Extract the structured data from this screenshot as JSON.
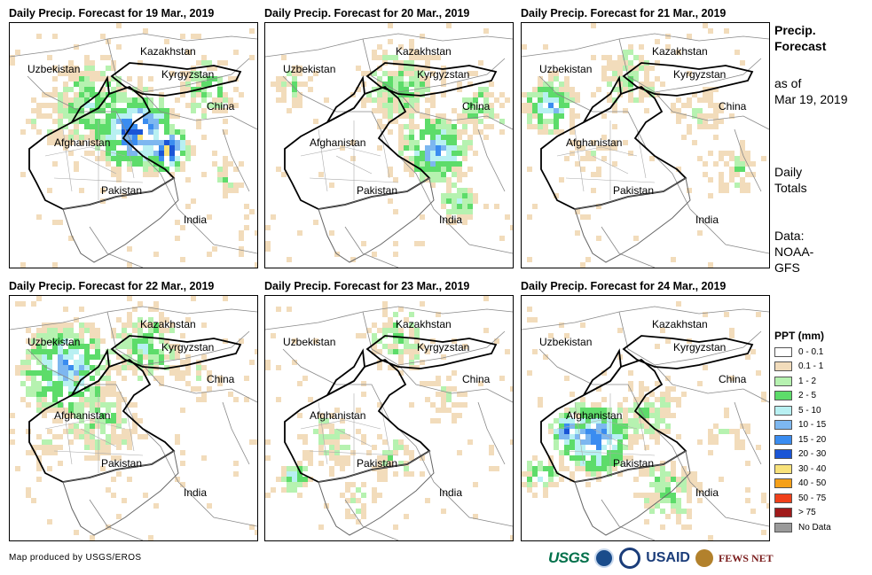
{
  "panels": [
    {
      "title": "Daily Precip. Forecast for 19 Mar., 2019",
      "pattern": "northeast-heavy"
    },
    {
      "title": "Daily Precip. Forecast for 20 Mar., 2019",
      "pattern": "east"
    },
    {
      "title": "Daily Precip. Forecast for 21 Mar., 2019",
      "pattern": "light-west"
    },
    {
      "title": "Daily Precip. Forecast for 22 Mar., 2019",
      "pattern": "northwest"
    },
    {
      "title": "Daily Precip. Forecast for 23 Mar., 2019",
      "pattern": "north-light"
    },
    {
      "title": "Daily Precip. Forecast for 24 Mar., 2019",
      "pattern": "central-heavy"
    }
  ],
  "map_labels": {
    "kazakhstan": "Kazakhstan",
    "uzbekistan": "Uzbekistan",
    "kyrgyzstan": "Kyrgyzstan",
    "china": "China",
    "afghanistan": "Afghanistan",
    "pakistan": "Pakistan",
    "india": "India"
  },
  "side": {
    "title_line1": "Precip.",
    "title_line2": "Forecast",
    "asof_line1": "as of",
    "asof_line2": "Mar 19, 2019",
    "daily_line1": "Daily",
    "daily_line2": "Totals",
    "data_line1": "Data:",
    "data_line2": "NOAA-",
    "data_line3": "GFS"
  },
  "legend": {
    "title": "PPT (mm)",
    "items": [
      {
        "label": "0 - 0.1",
        "color": "#ffffff"
      },
      {
        "label": "0.1 - 1",
        "color": "#f2dcbb"
      },
      {
        "label": "1 - 2",
        "color": "#b6f2b0"
      },
      {
        "label": "2 - 5",
        "color": "#5ddc6a"
      },
      {
        "label": "5 - 10",
        "color": "#b8f0f2"
      },
      {
        "label": "10 - 15",
        "color": "#7db7f0"
      },
      {
        "label": "15 - 20",
        "color": "#3a8cf0"
      },
      {
        "label": "20 - 30",
        "color": "#1a55d6"
      },
      {
        "label": "30 - 40",
        "color": "#f8e27a"
      },
      {
        "label": "40 - 50",
        "color": "#f5a018"
      },
      {
        "label": "50 - 75",
        "color": "#f0401a"
      },
      {
        "label": "> 75",
        "color": "#a01a1a"
      },
      {
        "label": "No Data",
        "color": "#9a9a9a"
      }
    ]
  },
  "credit": "Map produced by USGS/EROS",
  "logos": {
    "usgs": "USGS",
    "usaid": "USAID",
    "fews": "FEWS NET"
  }
}
